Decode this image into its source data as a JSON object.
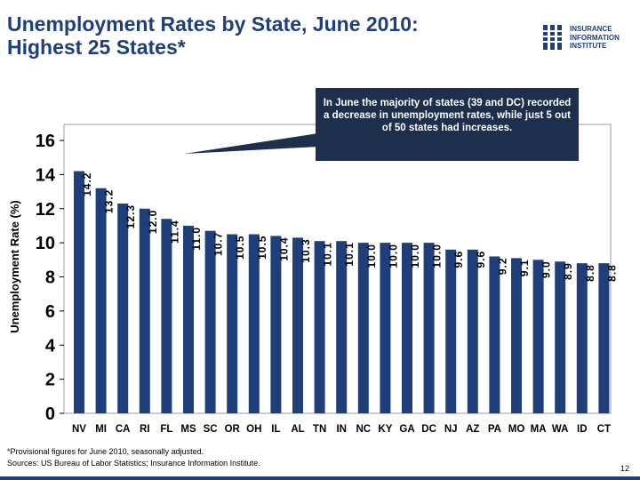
{
  "title_line1": "Unemployment Rates by State, June 2010:",
  "title_line2": "Highest 25 States*",
  "logo": {
    "line1": "INSURANCE",
    "line2": "INFORMATION",
    "line3": "INSTITUTE"
  },
  "callout": "In June the majority of states (39 and DC) recorded a decrease in unemployment rates, while just 5 out of 50 states had increases.",
  "footnote_line1": "*Provisional figures for June 2010, seasonally adjusted.",
  "footnote_line2": "Sources:  US Bureau of Labor Statistics; Insurance Information Institute.",
  "page_number": "12",
  "colors": {
    "title": "#1f3f7a",
    "bar": "#1f3f7a",
    "callout_bg": "#1d2f4c",
    "plot_bg": "#ffffff"
  },
  "chart_data": {
    "type": "bar",
    "title": "Unemployment Rates by State, June 2010: Highest 25 States*",
    "ylabel": "Unemployment Rate (%)",
    "xlabel": "",
    "ylim": [
      0,
      16
    ],
    "yticks": [
      0,
      2,
      4,
      6,
      8,
      10,
      12,
      14,
      16
    ],
    "categories": [
      "NV",
      "MI",
      "CA",
      "RI",
      "FL",
      "MS",
      "SC",
      "OR",
      "OH",
      "IL",
      "AL",
      "TN",
      "IN",
      "NC",
      "KY",
      "GA",
      "DC",
      "NJ",
      "AZ",
      "PA",
      "MO",
      "MA",
      "WA",
      "ID",
      "CT"
    ],
    "values": [
      14.2,
      13.2,
      12.3,
      12.0,
      11.4,
      11.0,
      10.7,
      10.5,
      10.5,
      10.4,
      10.3,
      10.1,
      10.1,
      10.0,
      10.0,
      10.0,
      10.0,
      9.6,
      9.6,
      9.2,
      9.1,
      9.0,
      8.9,
      8.8,
      8.8
    ],
    "value_labels": [
      "14.2",
      "13.2",
      "12.3",
      "12.0",
      "11.4",
      "11.0",
      "10.7",
      "10.5",
      "10.5",
      "10.4",
      "10.3",
      "10.1",
      "10.1",
      "10.0",
      "10.0",
      "10.0",
      "10.0",
      "9.6",
      "9.6",
      "9.2",
      "9.1",
      "9.0",
      "8.9",
      "8.8",
      "8.8"
    ]
  }
}
